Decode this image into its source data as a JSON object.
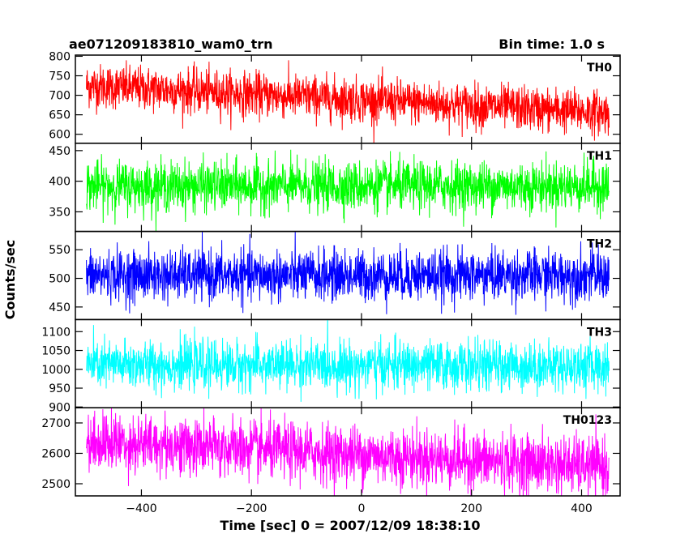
{
  "header": {
    "title": "ae071209183810_wam0_trn",
    "bin_time": "Bin time: 1.0 s"
  },
  "chart_data": {
    "type": "line",
    "title": "ae071209183810_wam0_trn",
    "xlabel": "Time [sec] 0 = 2007/12/09 18:38:10",
    "ylabel": "Counts/sec",
    "xlim": [
      -520,
      470
    ],
    "x_ticks": [
      -400,
      -200,
      0,
      200,
      400
    ],
    "x_range_data": [
      -500,
      450
    ],
    "panels": [
      {
        "name": "TH0",
        "color": "#ff0000",
        "ylim": [
          577,
          803
        ],
        "y_ticks": [
          600,
          650,
          700,
          750,
          800
        ],
        "trend_start": 725,
        "trend_end": 655,
        "noise_sigma": 28
      },
      {
        "name": "TH1",
        "color": "#00ff00",
        "ylim": [
          318,
          462
        ],
        "y_ticks": [
          350,
          400,
          450
        ],
        "trend_start": 392,
        "trend_end": 392,
        "noise_sigma": 20
      },
      {
        "name": "TH2",
        "color": "#0000ff",
        "ylim": [
          428,
          582
        ],
        "y_ticks": [
          450,
          500,
          550
        ],
        "trend_start": 505,
        "trend_end": 505,
        "noise_sigma": 22
      },
      {
        "name": "TH3",
        "color": "#00ffff",
        "ylim": [
          898,
          1132
        ],
        "y_ticks": [
          900,
          950,
          1000,
          1050,
          1100
        ],
        "trend_start": 1012,
        "trend_end": 1008,
        "noise_sigma": 32
      },
      {
        "name": "TH0123",
        "color": "#ff00ff",
        "ylim": [
          2460,
          2750
        ],
        "y_ticks": [
          2500,
          2600,
          2700
        ],
        "trend_start": 2640,
        "trend_end": 2555,
        "noise_sigma": 48
      }
    ]
  }
}
